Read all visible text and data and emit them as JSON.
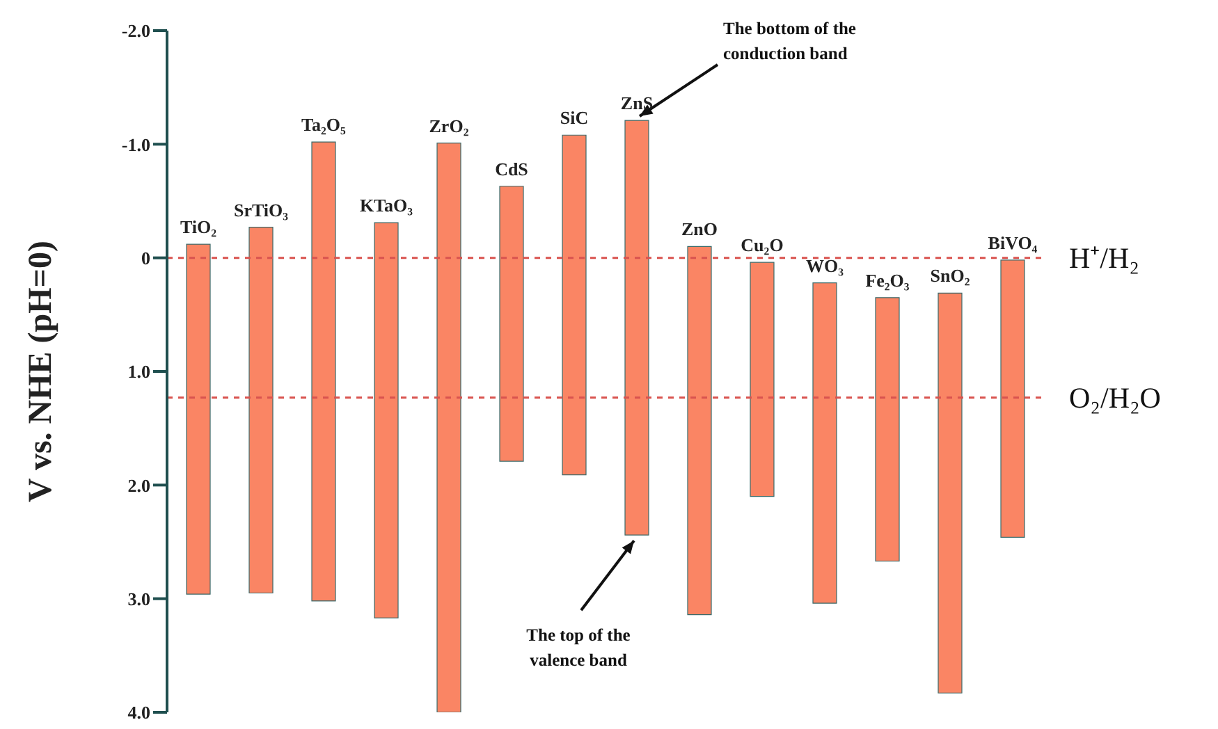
{
  "chart_data": {
    "type": "bar",
    "ylabel": "V vs. NHE (pH=0)",
    "categories": [
      "TiO₂",
      "SrTiO₃",
      "Ta₂O₅",
      "KTaO₃",
      "ZrO₂",
      "CdS",
      "SiC",
      "ZnS",
      "ZnO",
      "Cu₂O",
      "WO₃",
      "Fe₂O₃",
      "SnO₂",
      "BiVO₄"
    ],
    "base": [
      -0.12,
      -0.27,
      -1.02,
      -0.31,
      -1.01,
      -0.63,
      -1.08,
      -1.21,
      -0.1,
      0.04,
      0.22,
      0.35,
      0.31,
      0.02
    ],
    "values": [
      3.08,
      3.22,
      4.04,
      3.48,
      5.01,
      2.42,
      2.99,
      3.65,
      3.24,
      2.06,
      2.82,
      2.32,
      3.52,
      2.44
    ],
    "color": "#fa8564",
    "ylim": [
      4,
      -2
    ],
    "yticks": [
      {
        "value": -2,
        "label": "-2.0"
      },
      {
        "value": -1,
        "label": "-1.0"
      },
      0,
      {
        "value": 1,
        "label": "1.0"
      },
      {
        "value": 2,
        "label": "2.0"
      },
      {
        "value": 3,
        "label": "3.0"
      },
      {
        "value": 4,
        "label": "4.0"
      }
    ],
    "tick_labels": "y",
    "grid": false,
    "legend": false,
    "ref_lines": [
      {
        "axis": "y",
        "value": 0,
        "label": "H⁺/H₂",
        "color": "#d9534f",
        "line_style": "dashed"
      },
      {
        "axis": "y",
        "value": 1.23,
        "label": "O₂/H₂O",
        "color": "#d9534f",
        "line_style": "dashed"
      }
    ],
    "annotations": [
      {
        "text": "The bottom of the conduction band",
        "x": "ZnS",
        "y": -1.21
      },
      {
        "text": "The top of the valence band",
        "x": "ZnS",
        "y": 2.44
      }
    ]
  }
}
